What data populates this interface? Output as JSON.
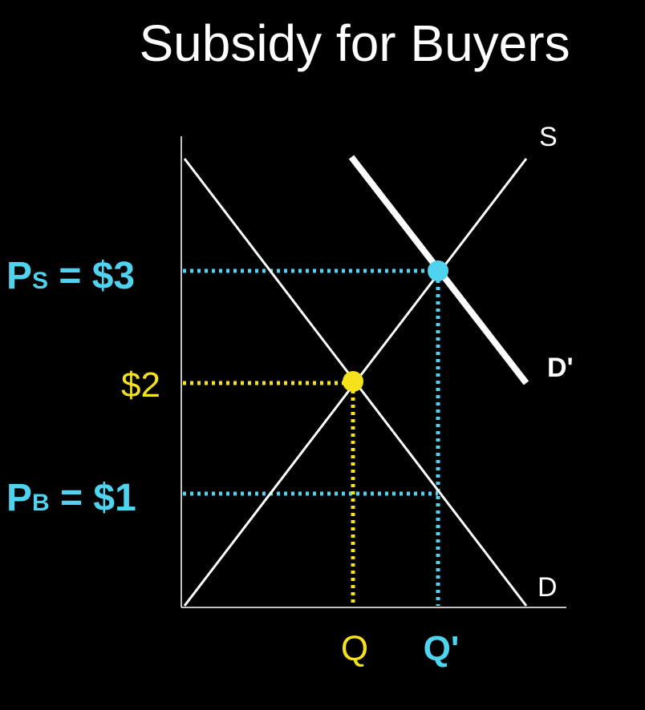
{
  "title": "Subsidy for Buyers",
  "curves": {
    "supply_label": "S",
    "demand_label": "D",
    "new_demand_label": "D'"
  },
  "prices": {
    "seller": {
      "symbol": "P",
      "subscript": "S",
      "equals": " = $3"
    },
    "original": "$2",
    "buyer": {
      "symbol": "P",
      "subscript": "B",
      "equals": " = $1"
    }
  },
  "quantities": {
    "original": "Q",
    "new": "Q'"
  },
  "colors": {
    "background": "#000000",
    "lines": "#ffffff",
    "accent_blue": "#4fd3ee",
    "accent_yellow": "#f4e21c"
  }
}
